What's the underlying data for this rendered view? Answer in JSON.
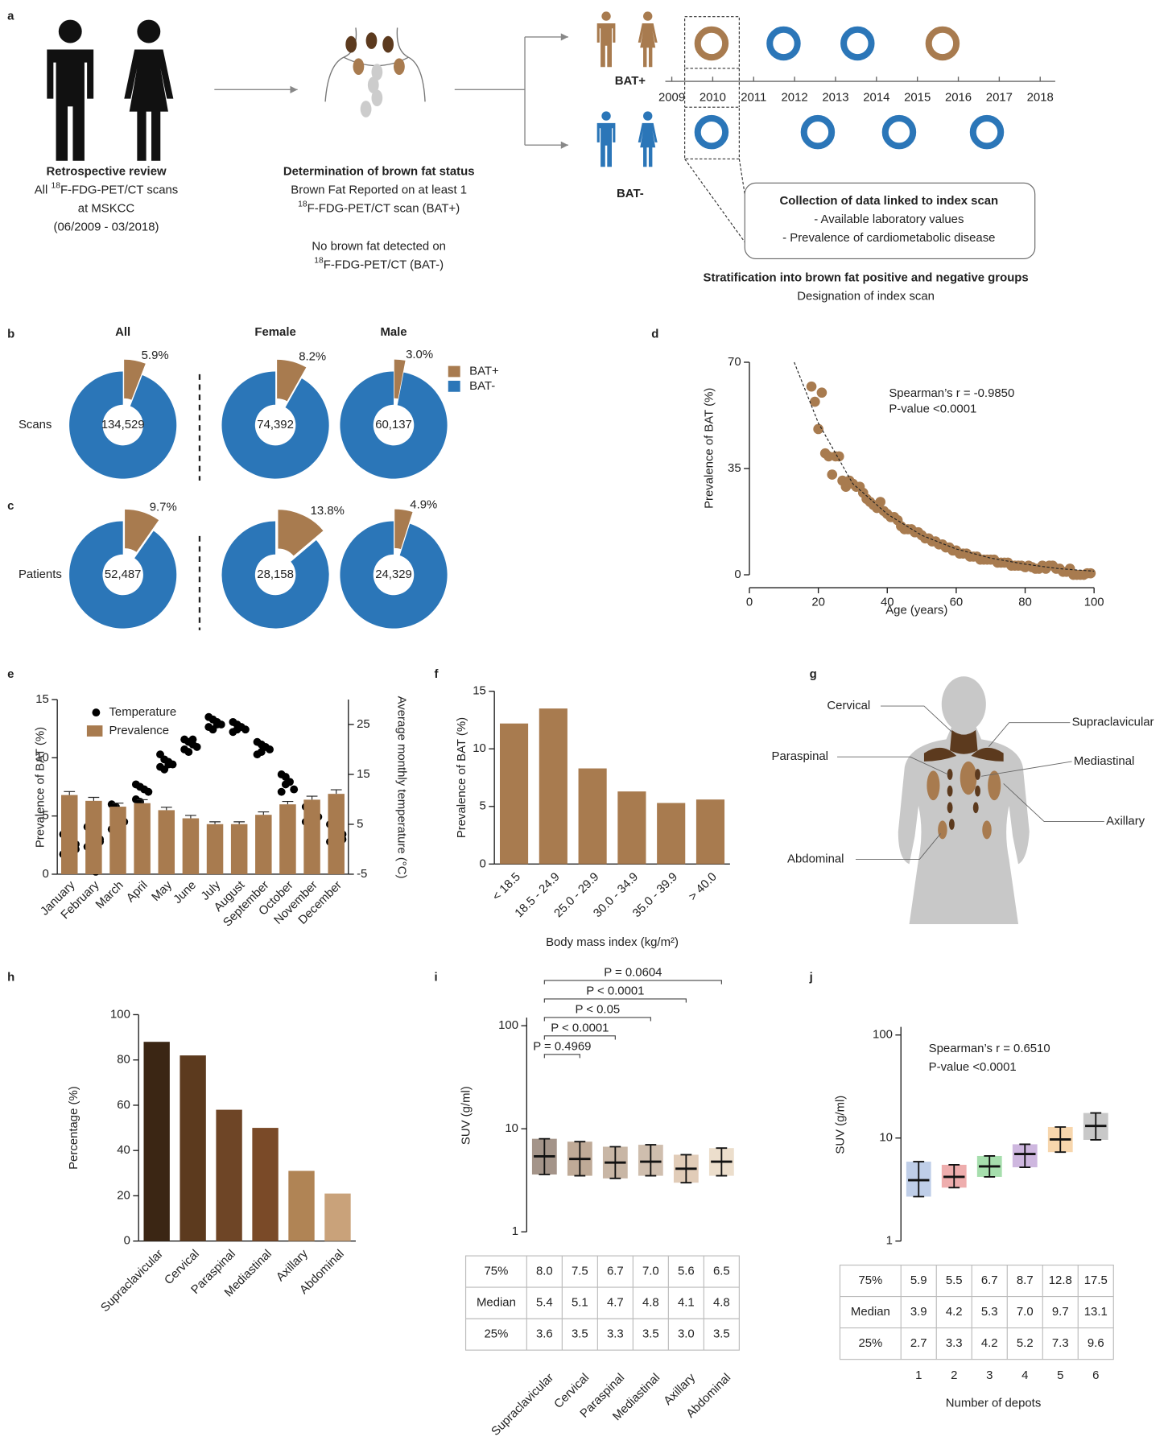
{
  "panel_labels": [
    "a",
    "b",
    "c",
    "d",
    "e",
    "f",
    "g",
    "h",
    "i",
    "j"
  ],
  "diagram": {
    "review": {
      "title": "Retrospective review",
      "lines": [
        {
          "pre": "All ",
          "sup": "18",
          "post": "F-FDG-PET/CT scans"
        },
        "at MSKCC",
        "(06/2009 - 03/2018)"
      ]
    },
    "status": {
      "title": "Determination of brown fat status",
      "lines": [
        "Brown Fat Reported on at least 1",
        {
          "sup": "18",
          "post": "F-FDG-PET/CT scan (BAT+)"
        }
      ],
      "lines2": [
        "No brown fat detected on",
        {
          "sup": "18",
          "post": "F-FDG-PET/CT (BAT-)"
        }
      ]
    },
    "groups": [
      "BAT+",
      "BAT-"
    ],
    "years": [
      2009,
      2010,
      2011,
      2012,
      2013,
      2014,
      2015,
      2016,
      2017,
      2018
    ],
    "collection": {
      "title": "Collection of data linked to index scan",
      "lines": [
        "- Available laboratory values",
        "- Prevalence of cardiometabolic disease"
      ]
    },
    "stratification": {
      "title": "Stratification into brown fat positive and negative groups",
      "lines": [
        "Designation of index scan"
      ]
    }
  },
  "body_map": {
    "labels": [
      "Cervical",
      "Supraclavicular",
      "Paraspinal",
      "Mediastinal",
      "Axillary",
      "Abdominal"
    ]
  },
  "chart_data": [
    {
      "type": "pie",
      "categories": [
        "BAT+",
        "BAT-"
      ],
      "colors": [
        "#a87b4f",
        "#2b76b8"
      ],
      "legend": "top-right",
      "columns": [
        "All",
        "Female",
        "Male"
      ],
      "rows": [
        "Scans",
        "Patients"
      ],
      "pies": [
        {
          "values": [
            5.9,
            94.1
          ],
          "value_labels": [
            "5.9%",
            null
          ],
          "total": {
            "value": 134529,
            "label": "134,529"
          }
        },
        {
          "values": [
            8.2,
            91.8
          ],
          "value_labels": [
            "8.2%",
            null
          ],
          "total": {
            "value": 74392,
            "label": "74,392"
          }
        },
        {
          "values": [
            3.0,
            97.0
          ],
          "value_labels": [
            "3.0%",
            null
          ],
          "total": {
            "value": 60137,
            "label": "60,137"
          }
        },
        {
          "values": [
            9.7,
            90.3
          ],
          "value_labels": [
            "9.7%",
            null
          ],
          "total": {
            "value": 52487,
            "label": "52,487"
          }
        },
        {
          "values": [
            13.8,
            86.2
          ],
          "value_labels": [
            "13.8%",
            null
          ],
          "total": {
            "value": 28158,
            "label": "28,158"
          }
        },
        {
          "values": [
            4.9,
            95.1
          ],
          "value_labels": [
            "4.9%",
            null
          ],
          "total": {
            "value": 24329,
            "label": "24,329"
          }
        }
      ]
    },
    {
      "type": "scatter",
      "xlabel": "Age (years)",
      "ylabel": "Prevalence of BAT (%)",
      "color": "#a87b4f",
      "annotations": [
        "Spearman’s r = -0.9850",
        "P-value <0.0001"
      ],
      "xlim": [
        0,
        100
      ],
      "xticks": [
        0,
        20,
        40,
        60,
        80,
        100
      ],
      "ylim": [
        0,
        70
      ],
      "yticks": [
        0,
        35,
        70
      ],
      "x": [
        18,
        19,
        20,
        21,
        22,
        23,
        24,
        25,
        26,
        27,
        28,
        29,
        30,
        31,
        32,
        33,
        34,
        35,
        36,
        37,
        38,
        39,
        40,
        41,
        42,
        43,
        44,
        45,
        46,
        47,
        48,
        49,
        50,
        51,
        52,
        53,
        54,
        55,
        56,
        57,
        58,
        59,
        60,
        61,
        62,
        63,
        64,
        65,
        66,
        67,
        68,
        69,
        70,
        71,
        72,
        73,
        74,
        75,
        76,
        77,
        78,
        79,
        80,
        81,
        82,
        83,
        84,
        85,
        86,
        87,
        88,
        89,
        90,
        91,
        92,
        93,
        94,
        95,
        96,
        97,
        98,
        99
      ],
      "values": [
        62,
        57,
        48,
        60,
        40,
        39,
        33,
        39,
        39,
        31,
        29,
        31,
        30,
        29,
        29,
        27,
        25,
        24,
        23,
        22,
        24,
        21,
        20,
        19,
        19,
        18,
        16,
        15,
        15,
        15,
        14,
        14,
        13,
        12,
        12,
        11,
        11,
        10,
        10,
        9,
        9,
        8,
        8,
        7,
        7,
        7,
        6,
        6,
        6,
        5,
        5,
        5,
        5,
        5,
        4,
        4,
        4,
        4,
        3,
        3,
        3,
        3,
        2.5,
        3,
        2.5,
        2,
        2,
        3,
        2,
        3,
        3,
        2,
        2,
        1,
        1,
        2,
        0,
        0,
        0,
        0,
        0.5,
        0.5
      ],
      "fit_line": {
        "x": [
          13,
          20,
          30,
          40,
          50,
          60,
          70,
          80,
          90,
          100
        ],
        "values": [
          70,
          50,
          30,
          20,
          13,
          8.5,
          5.5,
          3.5,
          2,
          1.2
        ]
      }
    },
    {
      "type": "bar_scatter",
      "ylabel": "Prevalence of BAT (%)",
      "y2label": "Average monthly temperature (°C)",
      "legend": "top-left",
      "categories": [
        "January",
        "February",
        "March",
        "April",
        "May",
        "June",
        "July",
        "August",
        "September",
        "October",
        "November",
        "December"
      ],
      "ylim": [
        0,
        15
      ],
      "yticks": [
        0,
        5,
        10,
        15
      ],
      "y2lim": [
        -5,
        30
      ],
      "y2ticks": [
        -5,
        5,
        15,
        25
      ],
      "series": [
        {
          "name": "Temperature",
          "color": "#000000",
          "axis": "y2",
          "values": [
            [
              3,
              2,
              1,
              0,
              -1,
              -1.5,
              2,
              1
            ],
            [
              4.5,
              4,
              2.5,
              1.5,
              0.5,
              -1,
              -4.5,
              2
            ],
            [
              9,
              8.5,
              7,
              5.5,
              4,
              3.5
            ],
            [
              13,
              12.5,
              12,
              11.5,
              10,
              9.5
            ],
            [
              19,
              18,
              17.5,
              17,
              16.5,
              16,
              17
            ],
            [
              22,
              21.5,
              21,
              20.5,
              20,
              19.5,
              22
            ],
            [
              26.5,
              26,
              25.5,
              25,
              24.5,
              24,
              25
            ],
            [
              25.5,
              25,
              24.5,
              24,
              23.5,
              24
            ],
            [
              21.5,
              21,
              20.5,
              20,
              19,
              19.5
            ],
            [
              15,
              14.5,
              13.5,
              12,
              11.5,
              13
            ],
            [
              8.5,
              8,
              7,
              6.5,
              5.5,
              5,
              7
            ],
            [
              5,
              4,
              3,
              2,
              1.5,
              0.5,
              -0.5,
              3
            ]
          ]
        },
        {
          "name": "Prevalence",
          "color": "#a87b4f",
          "values": [
            6.8,
            6.3,
            5.8,
            6.1,
            5.5,
            4.8,
            4.3,
            4.3,
            5.1,
            6.0,
            6.4,
            6.9
          ],
          "errors": [
            0.3,
            0.3,
            0.3,
            0.3,
            0.25,
            0.25,
            0.2,
            0.2,
            0.25,
            0.25,
            0.3,
            0.35
          ]
        }
      ]
    },
    {
      "type": "bar",
      "xlabel": "Body mass index (kg/m²)",
      "ylabel": "Prevalence of BAT (%)",
      "color": "#a87b4f",
      "categories": [
        "< 18.5",
        "18.5 - 24.9",
        "25.0 - 29.9",
        "30.0 - 34.9",
        "35.0 - 39.9",
        "> 40.0"
      ],
      "values": [
        12.2,
        13.5,
        8.3,
        6.3,
        5.3,
        5.6
      ],
      "ylim": [
        0,
        15
      ],
      "yticks": [
        0,
        5,
        10,
        15
      ]
    },
    {
      "type": "bar",
      "ylabel": "Percentage (%)",
      "colors": [
        "#3b2614",
        "#5c3a1e",
        "#6e4526",
        "#7a4a28",
        "#b08455",
        "#c9a27a"
      ],
      "categories": [
        "Supraclavicular",
        "Cervical",
        "Paraspinal",
        "Mediastinal",
        "Axillary",
        "Abdominal"
      ],
      "values": [
        88,
        82,
        58,
        50,
        31,
        21
      ],
      "ylim": [
        0,
        100
      ],
      "yticks": [
        0,
        20,
        40,
        60,
        80,
        100
      ]
    },
    {
      "type": "strip",
      "ylabel": "SUV (g/ml)",
      "log_y": true,
      "ylim": [
        1,
        120
      ],
      "yticks": [
        1,
        10,
        100
      ],
      "categories": [
        "Supraclavicular",
        "Cervical",
        "Paraspinal",
        "Mediastinal",
        "Axillary",
        "Abdominal"
      ],
      "colors": [
        "#5a3d28",
        "#8a6442",
        "#9b7a5b",
        "#a8896b",
        "#c9a27e",
        "#dcc3a2"
      ],
      "comparisons": [
        "P = 0.4969",
        "P < 0.0001",
        "P < 0.05",
        "P < 0.0001",
        "P = 0.0604"
      ],
      "stats": [
        {
          "name": "75%",
          "values": [
            8.0,
            7.5,
            6.7,
            7.0,
            5.6,
            6.5
          ],
          "value_labels": [
            "8.0",
            "7.5",
            "6.7",
            "7.0",
            "5.6",
            "6.5"
          ]
        },
        {
          "name": "Median",
          "values": [
            5.4,
            5.1,
            4.7,
            4.8,
            4.1,
            4.8
          ],
          "value_labels": [
            "5.4",
            "5.1",
            "4.7",
            "4.8",
            "4.1",
            "4.8"
          ]
        },
        {
          "name": "25%",
          "values": [
            3.6,
            3.5,
            3.3,
            3.5,
            3.0,
            3.5
          ],
          "value_labels": [
            "3.6",
            "3.5",
            "3.3",
            "3.5",
            "3.0",
            "3.5"
          ]
        }
      ]
    },
    {
      "type": "strip",
      "ylabel": "SUV (g/ml)",
      "xlabel": "Number of depots",
      "log_y": true,
      "ylim": [
        1,
        120
      ],
      "yticks": [
        1,
        10,
        100
      ],
      "annotations": [
        "Spearman’s r = 0.6510",
        "P-value <0.0001"
      ],
      "categories": [
        1,
        2,
        3,
        4,
        5,
        6
      ],
      "colors": [
        "#8aa6d6",
        "#e06a6a",
        "#5cc26a",
        "#a67cc4",
        "#f0b46a",
        "#9a9a9a"
      ],
      "stats": [
        {
          "name": "75%",
          "values": [
            5.9,
            5.5,
            6.7,
            8.7,
            12.8,
            17.5
          ],
          "value_labels": [
            "5.9",
            "5.5",
            "6.7",
            "8.7",
            "12.8",
            "17.5"
          ]
        },
        {
          "name": "Median",
          "values": [
            3.9,
            4.2,
            5.3,
            7.0,
            9.7,
            13.1
          ],
          "value_labels": [
            "3.9",
            "4.2",
            "5.3",
            "7.0",
            "9.7",
            "13.1"
          ]
        },
        {
          "name": "25%",
          "values": [
            2.7,
            3.3,
            4.2,
            5.2,
            7.3,
            9.6
          ],
          "value_labels": [
            "2.7",
            "3.3",
            "4.2",
            "5.2",
            "7.3",
            "9.6"
          ]
        }
      ]
    }
  ]
}
